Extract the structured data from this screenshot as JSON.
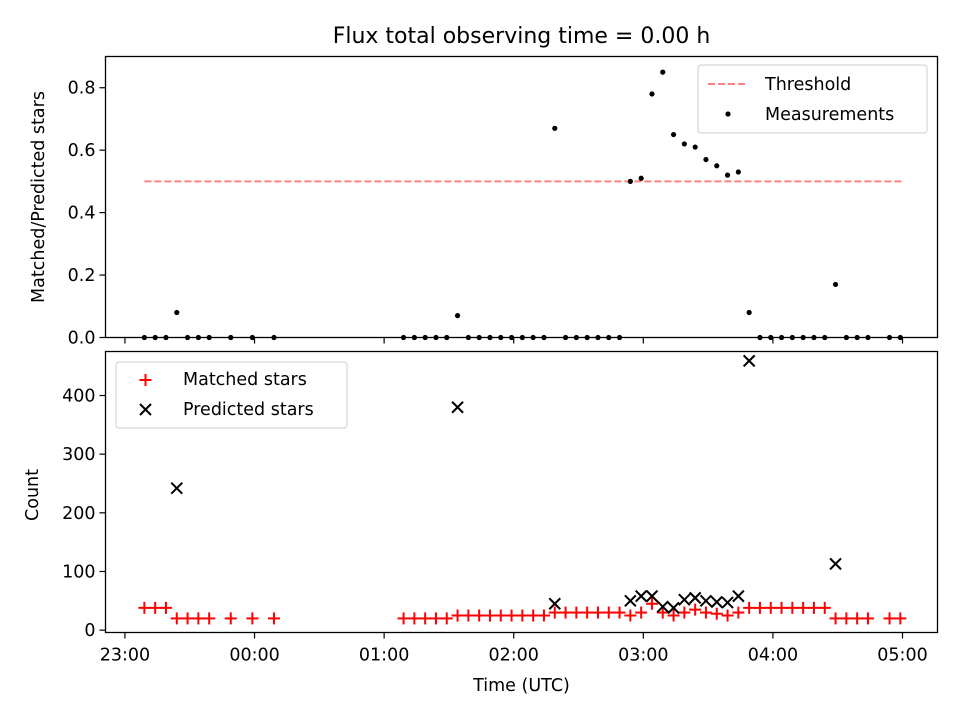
{
  "figure": {
    "title": "Flux total observing time = 0.00 h",
    "xlabel": "Time (UTC)"
  },
  "chart_data": [
    {
      "type": "scatter",
      "panel": "top",
      "ylabel": "Matched/Predicted stars",
      "xlim_hours": [
        22.85,
        29.27
      ],
      "ylim": [
        0.0,
        0.9
      ],
      "yticks": [
        0.0,
        0.2,
        0.4,
        0.6,
        0.8
      ],
      "ytick_labels": [
        "0.0",
        "0.2",
        "0.4",
        "0.6",
        "0.8"
      ],
      "legend": {
        "placement": "upper right",
        "entries": [
          "Threshold",
          "Measurements"
        ]
      },
      "threshold": {
        "name": "Threshold",
        "value": 0.5,
        "x_start": "23:09",
        "x_end": "05:00",
        "color": "#ff8080",
        "style": "dashed"
      },
      "series": [
        {
          "name": "Measurements",
          "color": "#000000",
          "marker": "dot",
          "x": [
            "23:09",
            "23:14",
            "23:19",
            "23:24",
            "23:29",
            "23:34",
            "23:39",
            "23:49",
            "23:59",
            "00:09",
            "01:09",
            "01:14",
            "01:19",
            "01:24",
            "01:29",
            "01:34",
            "01:39",
            "01:44",
            "01:49",
            "01:54",
            "01:59",
            "02:04",
            "02:09",
            "02:14",
            "02:19",
            "02:24",
            "02:29",
            "02:34",
            "02:39",
            "02:44",
            "02:49",
            "02:54",
            "02:59",
            "03:04",
            "03:09",
            "03:14",
            "03:19",
            "03:24",
            "03:29",
            "03:34",
            "03:39",
            "03:44",
            "03:49",
            "03:54",
            "03:59",
            "04:04",
            "04:09",
            "04:14",
            "04:19",
            "04:24",
            "04:29",
            "04:34",
            "04:39",
            "04:44",
            "04:54",
            "04:59"
          ],
          "y": [
            0.0,
            0.0,
            0.0,
            0.08,
            0.0,
            0.0,
            0.0,
            0.0,
            0.0,
            0.0,
            0.0,
            0.0,
            0.0,
            0.0,
            0.0,
            0.07,
            0.0,
            0.0,
            0.0,
            0.0,
            0.0,
            0.0,
            0.0,
            0.0,
            0.67,
            0.0,
            0.0,
            0.0,
            0.0,
            0.0,
            0.0,
            0.5,
            0.51,
            0.78,
            0.85,
            0.65,
            0.62,
            0.61,
            0.57,
            0.55,
            0.52,
            0.53,
            0.08,
            0.0,
            0.0,
            0.0,
            0.0,
            0.0,
            0.0,
            0.0,
            0.17,
            0.0,
            0.0,
            0.0,
            0.0,
            0.0
          ]
        }
      ]
    },
    {
      "type": "scatter",
      "panel": "bottom",
      "ylabel": "Count",
      "xlim_hours": [
        22.85,
        29.27
      ],
      "ylim": [
        -4,
        475
      ],
      "yticks": [
        0,
        100,
        200,
        300,
        400
      ],
      "ytick_labels": [
        "0",
        "100",
        "200",
        "300",
        "400"
      ],
      "xticks": [
        "23:00",
        "00:00",
        "01:00",
        "02:00",
        "03:00",
        "04:00",
        "05:00"
      ],
      "legend": {
        "placement": "upper left",
        "entries": [
          "Matched stars",
          "Predicted stars"
        ]
      },
      "series": [
        {
          "name": "Matched stars",
          "color": "#ff0000",
          "marker": "plus",
          "x": [
            "23:09",
            "23:14",
            "23:19",
            "23:24",
            "23:29",
            "23:34",
            "23:39",
            "23:49",
            "23:59",
            "00:09",
            "01:09",
            "01:14",
            "01:19",
            "01:24",
            "01:29",
            "01:34",
            "01:39",
            "01:44",
            "01:49",
            "01:54",
            "01:59",
            "02:04",
            "02:09",
            "02:14",
            "02:19",
            "02:24",
            "02:29",
            "02:34",
            "02:39",
            "02:44",
            "02:49",
            "02:54",
            "02:59",
            "03:04",
            "03:09",
            "03:14",
            "03:19",
            "03:24",
            "03:29",
            "03:34",
            "03:39",
            "03:44",
            "03:49",
            "03:54",
            "03:59",
            "04:04",
            "04:09",
            "04:14",
            "04:19",
            "04:24",
            "04:29",
            "04:34",
            "04:39",
            "04:44",
            "04:54",
            "04:59"
          ],
          "y": [
            38,
            38,
            38,
            20,
            20,
            20,
            20,
            20,
            20,
            20,
            20,
            20,
            20,
            20,
            20,
            25,
            25,
            25,
            25,
            25,
            25,
            25,
            25,
            25,
            30,
            30,
            30,
            30,
            30,
            30,
            30,
            25,
            30,
            45,
            30,
            25,
            30,
            35,
            30,
            28,
            25,
            30,
            38,
            38,
            38,
            38,
            38,
            38,
            38,
            38,
            20,
            20,
            20,
            20,
            20,
            20
          ]
        },
        {
          "name": "Predicted stars",
          "color": "#000000",
          "marker": "x",
          "x": [
            "23:24",
            "01:34",
            "02:19",
            "02:54",
            "02:59",
            "03:04",
            "03:09",
            "03:14",
            "03:19",
            "03:24",
            "03:29",
            "03:34",
            "03:39",
            "03:44",
            "03:49",
            "04:29"
          ],
          "y": [
            242,
            380,
            45,
            50,
            58,
            58,
            40,
            38,
            52,
            55,
            50,
            48,
            47,
            58,
            459,
            113
          ]
        }
      ]
    }
  ]
}
